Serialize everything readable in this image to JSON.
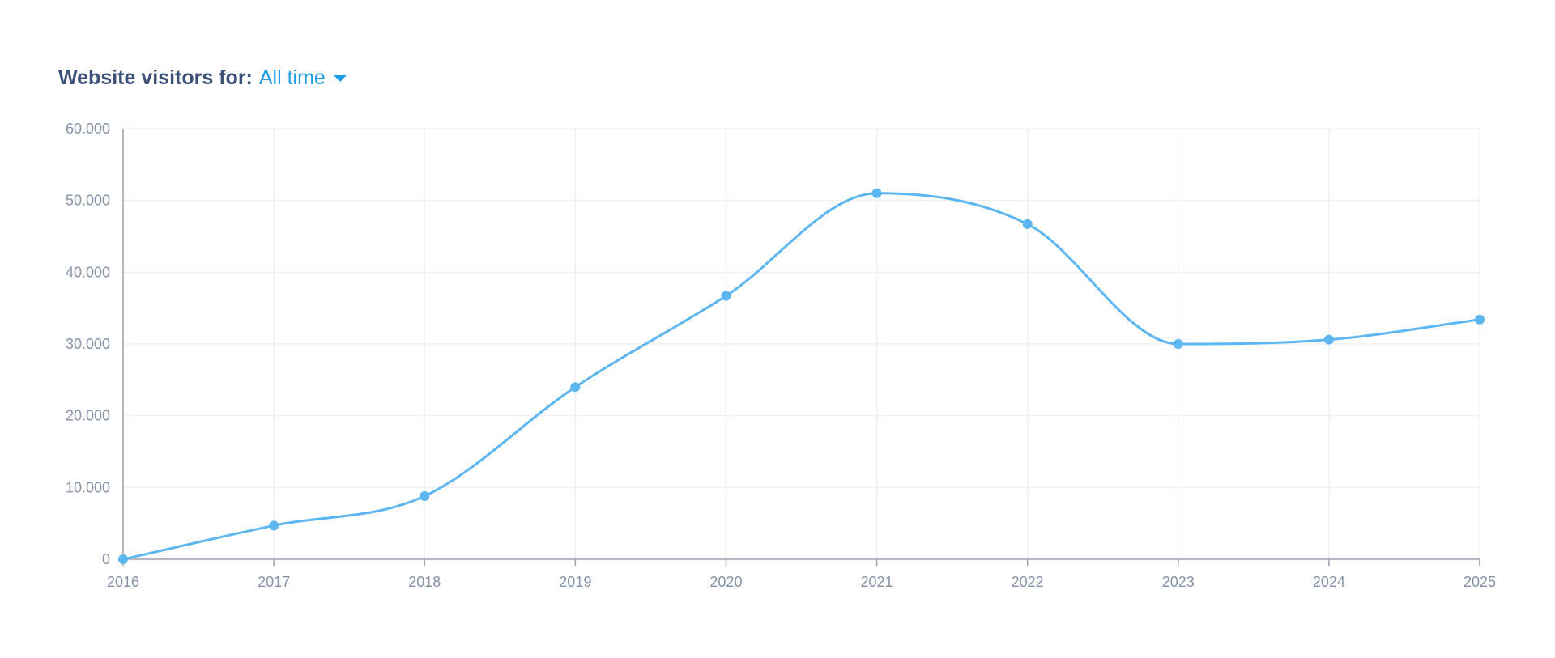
{
  "header": {
    "label": "Website visitors for:",
    "period_value": "All time",
    "caret_icon": "caret-down-icon"
  },
  "colors": {
    "line": "#5bb6f1",
    "point": "#5bb6f1",
    "grid": "#eef0f4",
    "axis": "#9aa0ad",
    "tick_text": "#8792a8",
    "header_label": "#3b5178",
    "accent": "#1a9ce8"
  },
  "chart_data": {
    "type": "line",
    "title": "",
    "xlabel": "",
    "ylabel": "",
    "x": [
      "2016",
      "2017",
      "2018",
      "2019",
      "2020",
      "2021",
      "2022",
      "2023",
      "2024",
      "2025"
    ],
    "series": [
      {
        "name": "",
        "values": [
          0,
          4700,
          8800,
          24000,
          36700,
          51000,
          46700,
          30000,
          30600,
          33400
        ]
      }
    ],
    "ylim": [
      0,
      60000
    ],
    "y_ticks": [
      0,
      10000,
      20000,
      30000,
      40000,
      50000,
      60000
    ],
    "y_tick_labels": [
      "0",
      "10.000",
      "20.000",
      "30.000",
      "40.000",
      "50.000",
      "60.000"
    ],
    "grid": true,
    "smooth": true,
    "legend": "none"
  }
}
